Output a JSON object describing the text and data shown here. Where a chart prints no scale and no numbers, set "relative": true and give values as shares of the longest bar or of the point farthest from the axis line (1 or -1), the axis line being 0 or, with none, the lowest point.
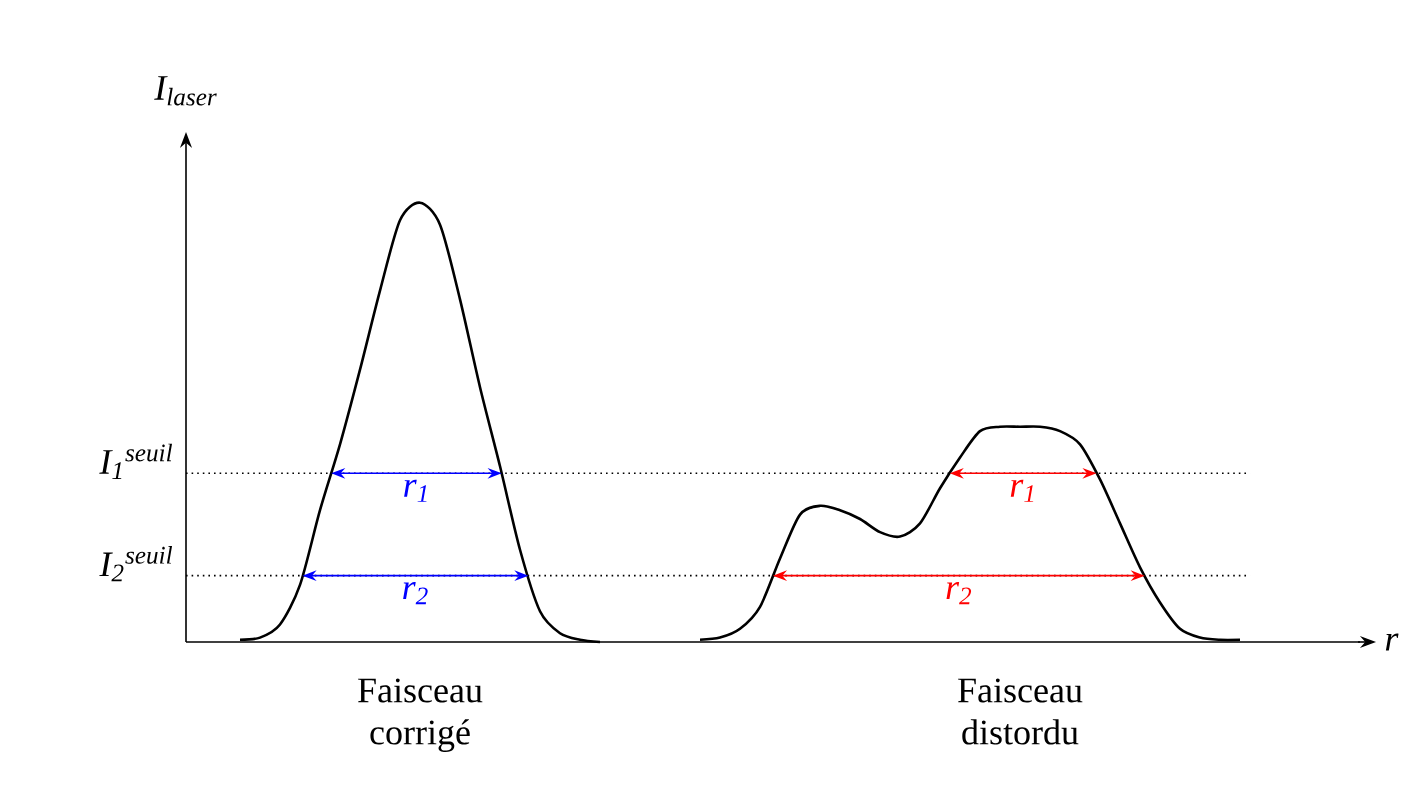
{
  "chart_data": {
    "type": "line",
    "relative": true,
    "marker": "none",
    "ylabel": "I$_{laser}$",
    "xlabel": "r",
    "categories": [
      null,
      null,
      null,
      null,
      null,
      null,
      null,
      null,
      null,
      null,
      null,
      "Faisceau corrigé",
      null,
      null,
      null,
      null,
      null,
      null,
      null,
      null,
      null,
      null,
      null,
      null,
      null,
      null,
      null,
      null,
      null,
      null,
      null,
      null,
      null,
      null,
      null,
      null,
      null,
      null,
      null,
      null,
      null,
      "Faisceau distordu",
      null,
      null,
      null,
      null,
      null,
      null,
      null,
      null,
      null,
      null,
      null,
      null,
      null,
      null,
      null,
      null,
      null
    ],
    "series": [
      {
        "color": "#000000",
        "values": [
          null,
          null,
          0.005,
          0.01,
          0.04,
          0.13,
          0.3,
          0.45,
          0.62,
          0.8,
          0.96,
          1.0,
          0.95,
          0.78,
          0.58,
          0.4,
          0.21,
          0.07,
          0.02,
          0.005,
          0.0,
          null,
          null,
          null,
          null,
          0.005,
          0.01,
          0.03,
          0.08,
          0.19,
          0.29,
          0.31,
          0.3,
          0.28,
          0.25,
          0.24,
          0.27,
          0.35,
          0.42,
          0.48,
          0.49,
          0.49,
          0.49,
          0.48,
          0.45,
          0.37,
          0.27,
          0.17,
          0.09,
          0.03,
          0.01,
          0.005,
          0.005,
          null,
          null,
          null,
          null,
          null,
          null
        ]
      }
    ],
    "ref_lines": [
      {
        "axis": "y",
        "value": 0.384,
        "label": "I$_{1}$$^{seuil}$",
        "line_style": "dotted"
      },
      {
        "axis": "y",
        "value": 0.151,
        "label": "I$_{2}$$^{seuil}$",
        "line_style": "dotted"
      }
    ],
    "annotations": [
      {
        "text": "r$_{1}$",
        "y": 0.384
      },
      {
        "text": "r$_{2}$",
        "y": 0.151
      },
      {
        "text": "r$_{1}$",
        "y": 0.384
      },
      {
        "text": "r$_{2}$",
        "y": 0.151
      }
    ]
  }
}
